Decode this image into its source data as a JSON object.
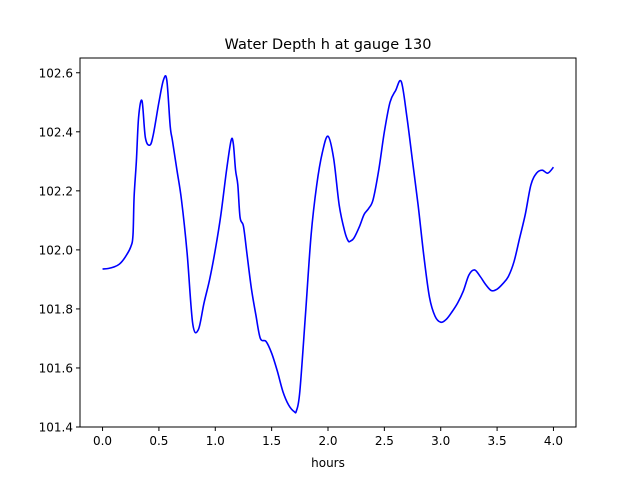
{
  "chart_data": {
    "type": "line",
    "title": "Water Depth h at gauge 130",
    "xlabel": "hours",
    "ylabel": "",
    "xlim": [
      -0.2,
      4.2
    ],
    "ylim": [
      101.4,
      102.65
    ],
    "x_ticks": [
      0.0,
      0.5,
      1.0,
      1.5,
      2.0,
      2.5,
      3.0,
      3.5,
      4.0
    ],
    "x_tick_labels": [
      "0.0",
      "0.5",
      "1.0",
      "1.5",
      "2.0",
      "2.5",
      "3.0",
      "3.5",
      "4.0"
    ],
    "y_ticks": [
      101.4,
      101.6,
      101.8,
      102.0,
      102.2,
      102.4,
      102.6
    ],
    "y_tick_labels": [
      "101.4",
      "101.6",
      "101.8",
      "102.0",
      "102.2",
      "102.4",
      "102.6"
    ],
    "grid": false,
    "series": [
      {
        "color": "#0000ff",
        "x": [
          0.0,
          0.05,
          0.1,
          0.15,
          0.2,
          0.25,
          0.27,
          0.28,
          0.3,
          0.32,
          0.35,
          0.38,
          0.42,
          0.45,
          0.5,
          0.54,
          0.57,
          0.6,
          0.62,
          0.66,
          0.7,
          0.75,
          0.8,
          0.85,
          0.9,
          0.95,
          1.0,
          1.05,
          1.1,
          1.14,
          1.16,
          1.18,
          1.2,
          1.22,
          1.25,
          1.28,
          1.32,
          1.36,
          1.4,
          1.45,
          1.5,
          1.55,
          1.6,
          1.65,
          1.7,
          1.72,
          1.75,
          1.8,
          1.85,
          1.9,
          1.95,
          2.0,
          2.05,
          2.1,
          2.15,
          2.18,
          2.2,
          2.23,
          2.28,
          2.32,
          2.36,
          2.4,
          2.45,
          2.5,
          2.55,
          2.6,
          2.65,
          2.7,
          2.75,
          2.8,
          2.85,
          2.9,
          2.95,
          3.0,
          3.05,
          3.1,
          3.15,
          3.2,
          3.25,
          3.3,
          3.35,
          3.4,
          3.45,
          3.5,
          3.55,
          3.6,
          3.65,
          3.7,
          3.75,
          3.8,
          3.85,
          3.9,
          3.95,
          4.0
        ],
        "y": [
          101.935,
          101.937,
          101.942,
          101.952,
          101.975,
          102.01,
          102.05,
          102.18,
          102.3,
          102.45,
          102.505,
          102.38,
          102.355,
          102.39,
          102.5,
          102.575,
          102.575,
          102.42,
          102.37,
          102.27,
          102.17,
          101.99,
          101.75,
          101.73,
          101.82,
          101.9,
          102.0,
          102.12,
          102.27,
          102.37,
          102.36,
          102.27,
          102.22,
          102.11,
          102.08,
          101.99,
          101.87,
          101.78,
          101.7,
          101.69,
          101.65,
          101.59,
          101.52,
          101.475,
          101.452,
          101.455,
          101.52,
          101.78,
          102.05,
          102.22,
          102.33,
          102.385,
          102.31,
          102.15,
          102.06,
          102.03,
          102.03,
          102.04,
          102.08,
          102.12,
          102.14,
          102.17,
          102.27,
          102.4,
          102.5,
          102.54,
          102.57,
          102.45,
          102.3,
          102.15,
          101.98,
          101.84,
          101.775,
          101.755,
          101.765,
          101.79,
          101.82,
          101.86,
          101.915,
          101.932,
          101.91,
          101.882,
          101.862,
          101.867,
          101.885,
          101.91,
          101.96,
          102.04,
          102.12,
          102.22,
          102.26,
          102.27,
          102.26,
          102.28
        ]
      }
    ]
  }
}
